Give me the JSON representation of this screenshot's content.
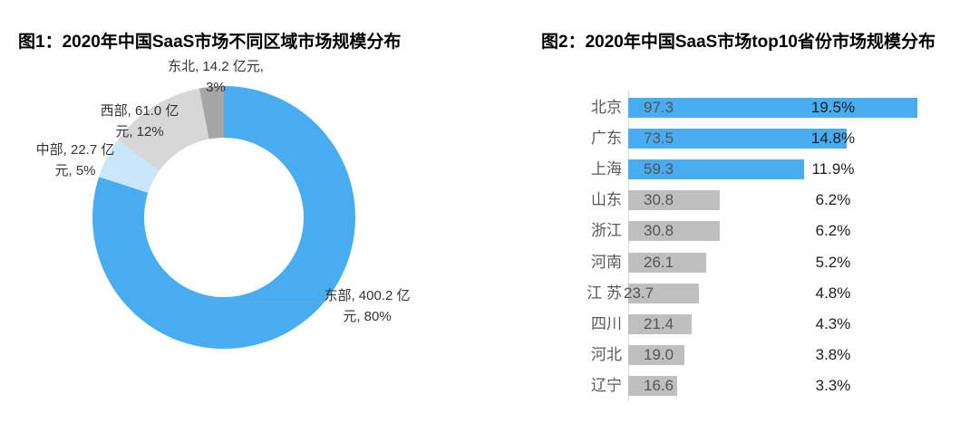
{
  "colors": {
    "accent_blue": "#47ACF0",
    "pale_blue": "#C9E6FA",
    "light_gray": "#D7D7D7",
    "mid_gray": "#A6A6A6",
    "bar_gray": "#BFBFBF",
    "axis_gray": "#D9D9D9",
    "category_text": "#595959",
    "percent_text": "#1F1F1F",
    "title_text": "#000000"
  },
  "figure1": {
    "title": "图1：2020年中国SaaS市场不同区域市场规模分布",
    "chart_data": {
      "type": "pie",
      "subtype": "donut",
      "unit": "亿元",
      "start_angle_deg": 0,
      "direction": "clockwise",
      "legend": "none",
      "slices": [
        {
          "name": "东部",
          "value": 400.2,
          "share_pct": 80,
          "color": "#47ACF0",
          "label_line1": "东部, 400.2 亿",
          "label_line2": "元, 80%"
        },
        {
          "name": "中部",
          "value": 22.7,
          "share_pct": 5,
          "color": "#C9E6FA",
          "label_line1": "中部, 22.7 亿",
          "label_line2": "元, 5%"
        },
        {
          "name": "西部",
          "value": 61.0,
          "share_pct": 12,
          "color": "#D7D7D7",
          "label_line1": "西部, 61.0 亿",
          "label_line2": "元, 12%"
        },
        {
          "name": "东北",
          "value": 14.2,
          "share_pct": 3,
          "color": "#A6A6A6",
          "label_line1": "东北, 14.2 亿元,",
          "label_line2": "3%"
        }
      ]
    }
  },
  "figure2": {
    "title": "图2：2020年中国SaaS市场top10省份市场规模分布",
    "chart_data": {
      "type": "bar",
      "orientation": "horizontal",
      "unit": "亿元",
      "x_range": [
        0,
        100
      ],
      "grid": "off",
      "items": [
        {
          "name": "北京",
          "value": 97.3,
          "value_label": "97.3",
          "pct": "19.5%",
          "color": "#47ACF0"
        },
        {
          "name": "广东",
          "value": 73.5,
          "value_label": "73.5",
          "pct": "14.8%",
          "color": "#47ACF0"
        },
        {
          "name": "上海",
          "value": 59.3,
          "value_label": "59.3",
          "pct": "11.9%",
          "color": "#47ACF0"
        },
        {
          "name": "山东",
          "value": 30.8,
          "value_label": "30.8",
          "pct": "6.2%",
          "color": "#BFBFBF"
        },
        {
          "name": "浙江",
          "value": 30.8,
          "value_label": "30.8",
          "pct": "6.2%",
          "color": "#BFBFBF"
        },
        {
          "name": "河南",
          "value": 26.1,
          "value_label": "26.1",
          "pct": "5.2%",
          "color": "#BFBFBF"
        },
        {
          "name": "江 苏",
          "value": 23.7,
          "value_label": "23.7",
          "pct": "4.8%",
          "color": "#BFBFBF",
          "value_label_overflow": true
        },
        {
          "name": "四川",
          "value": 21.4,
          "value_label": "21.4",
          "pct": "4.3%",
          "color": "#BFBFBF"
        },
        {
          "name": "河北",
          "value": 19.0,
          "value_label": "19.0",
          "pct": "3.8%",
          "color": "#BFBFBF"
        },
        {
          "name": "辽宁",
          "value": 16.6,
          "value_label": "16.6",
          "pct": "3.3%",
          "color": "#BFBFBF"
        }
      ]
    }
  }
}
